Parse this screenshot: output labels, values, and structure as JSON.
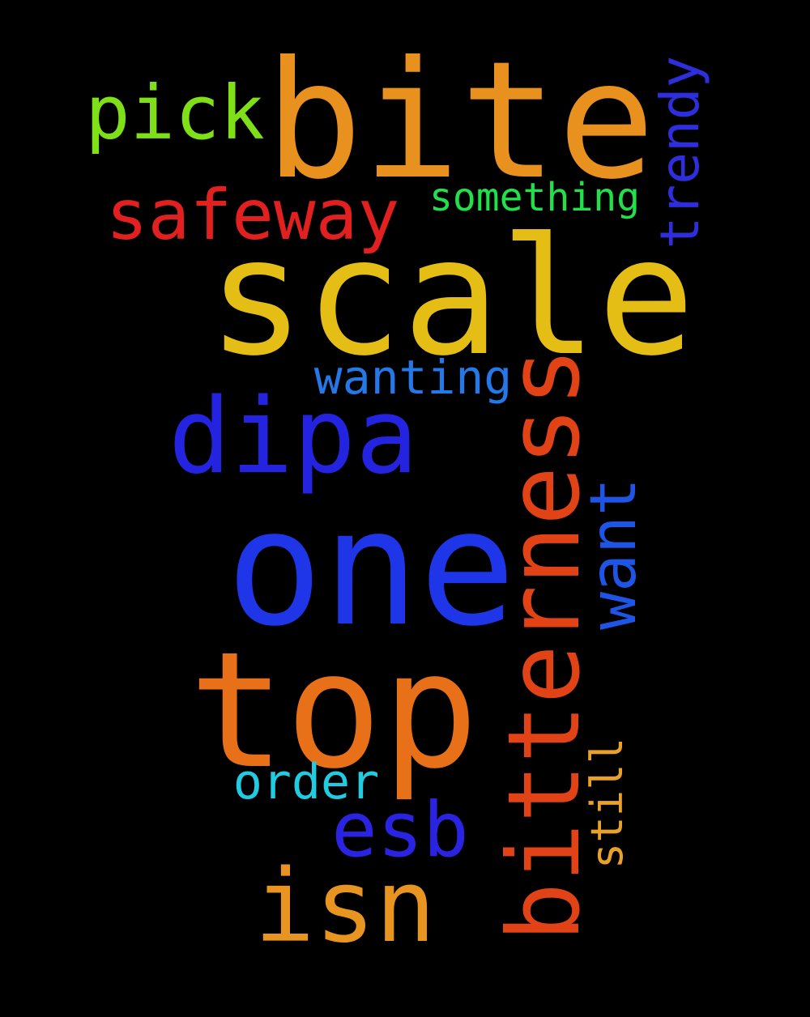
{
  "words": [
    {
      "key": "bite",
      "text": "bite",
      "color": "#E8911E"
    },
    {
      "key": "scale",
      "text": "scale",
      "color": "#E5BE15"
    },
    {
      "key": "one",
      "text": "one",
      "color": "#1E36E8"
    },
    {
      "key": "top",
      "text": "top",
      "color": "#E87018"
    },
    {
      "key": "bitterness",
      "text": "bitterness",
      "color": "#E24316"
    },
    {
      "key": "dipa",
      "text": "dipa",
      "color": "#2424E0"
    },
    {
      "key": "safeway",
      "text": "safeway",
      "color": "#E22020"
    },
    {
      "key": "pick",
      "text": "pick",
      "color": "#7FE018"
    },
    {
      "key": "isn",
      "text": "isn",
      "color": "#E89420"
    },
    {
      "key": "trendy",
      "text": "trendy",
      "color": "#2E2EDC"
    },
    {
      "key": "want",
      "text": "want",
      "color": "#1F55E6"
    },
    {
      "key": "esb",
      "text": "esb",
      "color": "#2A24E2"
    },
    {
      "key": "something",
      "text": "something",
      "color": "#22E04A"
    },
    {
      "key": "wanting",
      "text": "wanting",
      "color": "#2478E8"
    },
    {
      "key": "order",
      "text": "order",
      "color": "#22CCE0"
    },
    {
      "key": "still",
      "text": "still",
      "color": "#E8A22A"
    }
  ]
}
